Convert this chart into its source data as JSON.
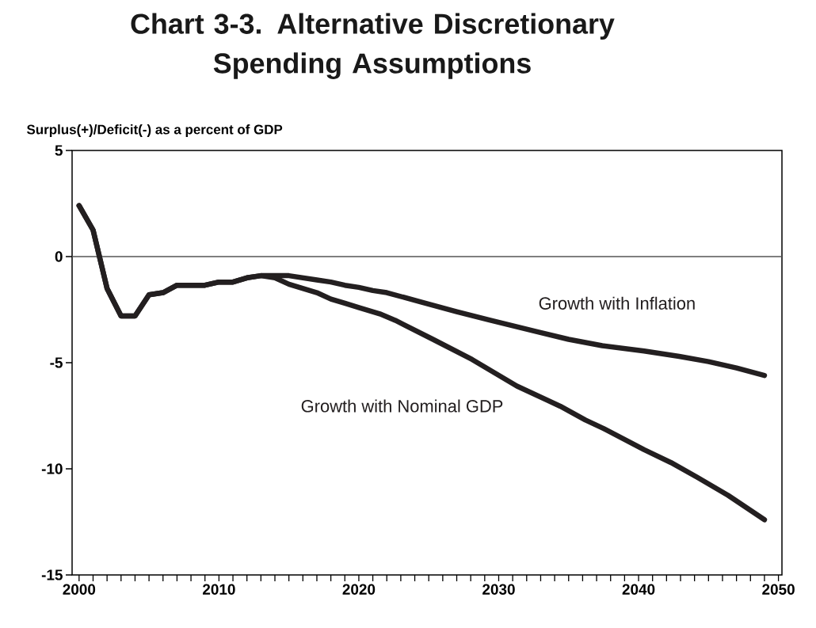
{
  "chart_data": {
    "type": "line",
    "title": "Chart 3-3.  Alternative Discretionary Spending Assumptions",
    "ylabel": "Surplus(+)/Deficit(-) as a percent of GDP",
    "series": [
      {
        "name": "Growth with Inflation",
        "color": "#231f20",
        "x": [
          2000,
          2001,
          2002,
          2003,
          2004,
          2005,
          2006,
          2007,
          2008,
          2009,
          2010,
          2011,
          2012,
          2013,
          2014,
          2015,
          2016,
          2017,
          2018,
          2019,
          2020,
          2021,
          2022,
          2024.5,
          2027,
          2029.4,
          2032.8,
          2035,
          2037.4,
          2040.4,
          2042.9,
          2045,
          2047,
          2049
        ],
        "values": [
          2.4,
          1.25,
          -1.5,
          -2.8,
          -2.8,
          -1.8,
          -1.7,
          -1.35,
          -1.35,
          -1.35,
          -1.2,
          -1.2,
          -1.0,
          -0.9,
          -0.9,
          -0.9,
          -1.0,
          -1.1,
          -1.2,
          -1.35,
          -1.45,
          -1.6,
          -1.7,
          -2.15,
          -2.6,
          -3.0,
          -3.55,
          -3.9,
          -4.2,
          -4.45,
          -4.7,
          -4.95,
          -5.25,
          -5.6
        ]
      },
      {
        "name": "Growth with Nominal GDP",
        "color": "#231f20",
        "x": [
          2000,
          2001,
          2002,
          2003,
          2004,
          2005,
          2006,
          2007,
          2008,
          2009,
          2010,
          2011,
          2012,
          2013,
          2014,
          2015,
          2016,
          2017,
          2018,
          2019,
          2020,
          2021.5,
          2022.6,
          2025.3,
          2028.1,
          2031.3,
          2034.4,
          2036.2,
          2037.5,
          2040.4,
          2042.3,
          2044.2,
          2046.4,
          2049
        ],
        "values": [
          2.4,
          1.25,
          -1.5,
          -2.8,
          -2.8,
          -1.8,
          -1.7,
          -1.35,
          -1.35,
          -1.35,
          -1.2,
          -1.2,
          -1.0,
          -0.9,
          -1.0,
          -1.3,
          -1.5,
          -1.7,
          -2.0,
          -2.2,
          -2.4,
          -2.7,
          -3.0,
          -3.9,
          -4.85,
          -6.1,
          -7.05,
          -7.7,
          -8.1,
          -9.1,
          -9.7,
          -10.4,
          -11.25,
          -12.4
        ]
      }
    ],
    "xlim": [
      1999.5,
      2050.25
    ],
    "ylim": [
      -15,
      5
    ],
    "xticks": [
      2000,
      2010,
      2020,
      2030,
      2040,
      2050
    ],
    "yticks": [
      5,
      0,
      -5,
      -10,
      -15
    ],
    "ref_lines": [
      {
        "axis": "y",
        "value": 0,
        "color": "#555555"
      }
    ],
    "grid": false,
    "marker": "none",
    "line_style": "solid"
  }
}
